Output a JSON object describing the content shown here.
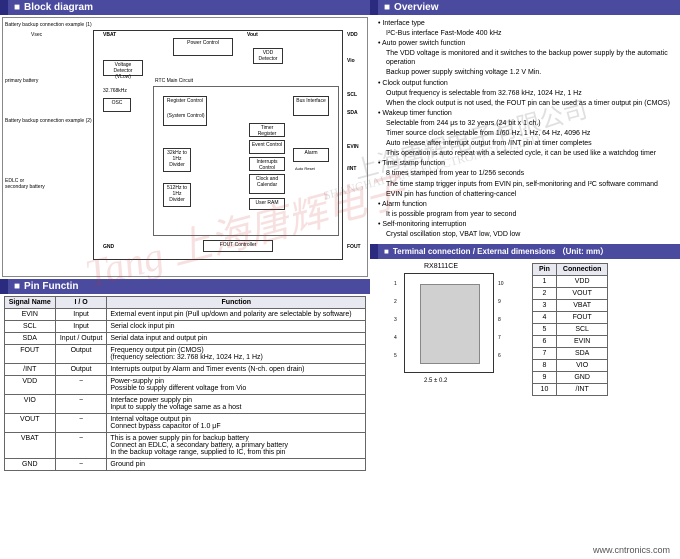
{
  "headers": {
    "block_diagram": "Block diagram",
    "overview": "Overview",
    "pin_function": "Pin Functin",
    "terminal": "Terminal connection / External dimensions （Unit: mm）"
  },
  "block_diagram": {
    "examples": [
      "Battery backup connection example (1)",
      "Battery backup connection example (2)"
    ],
    "ext_labels": [
      "Vsec",
      "primary battery",
      "EDLC or secondary battery"
    ],
    "boxes": {
      "power_control": "Power Control",
      "vdd_detector": "VDD Detector",
      "vlow_detector": "Voltage Detector (VLow)",
      "osc": "OSC",
      "freq1": "32.768kHz",
      "reg_control": "Register Control",
      "bus_if": "Bus Interface",
      "timer_reg": "Timer Register",
      "event_control": "Event Control",
      "int_control": "Interrupts Control",
      "clock_cal": "Clock and Calendar",
      "user_ram": "User RAM",
      "fout_ctrl": "FOUT Controller",
      "divider1": "32kHz to 1Hz Divider",
      "divider2": "512Hz to 1Hz Divider",
      "main_circuit": "RTC Main Circuit",
      "system_control": "(System Control)",
      "alarm": "Alarm",
      "auto_reset": "Auto Reset"
    },
    "pins": [
      "VBAT",
      "Vout",
      "VDD",
      "Vio",
      "SCL",
      "SDA",
      "EVIN",
      "/INT",
      "FOUT",
      "GND"
    ]
  },
  "overview": [
    {
      "t": "bullet",
      "text": "Interface type"
    },
    {
      "t": "sub",
      "text": "I²C-Bus interface Fast-Mode 400 kHz"
    },
    {
      "t": "bullet",
      "text": "Auto power switch function"
    },
    {
      "t": "sub",
      "text": "The VDD voltage is monitored and it switches to the backup power supply by the automatic operation"
    },
    {
      "t": "sub",
      "text": "Backup power supply switching voltage 1.2 V Min."
    },
    {
      "t": "bullet",
      "text": "Clock output function"
    },
    {
      "t": "sub",
      "text": "Output frequency is selectable from 32.768 kHz, 1024 Hz, 1 Hz"
    },
    {
      "t": "sub",
      "text": "When the clock output is not used, the FOUT pin can be used as a timer output pin (CMOS)"
    },
    {
      "t": "bullet",
      "text": "Wakeup timer function"
    },
    {
      "t": "sub",
      "text": "Selectable from 244 μs to 32 years (24 bit x 1 ch.)"
    },
    {
      "t": "sub",
      "text": "Timer source clock selectable from 1/60 Hz, 1 Hz, 64 Hz, 4096 Hz"
    },
    {
      "t": "sub",
      "text": "Auto release after interrupt output from /INT pin at timer completes"
    },
    {
      "t": "sub",
      "text": "This operation is auto repeat with a selected cycle, it can be used like a watchdog timer"
    },
    {
      "t": "bullet",
      "text": "Time stamp function"
    },
    {
      "t": "sub",
      "text": "8 times stamped from year to 1/256 seconds"
    },
    {
      "t": "sub",
      "text": "The time stamp trigger inputs from EVIN pin, self-monitoring and I²C software command"
    },
    {
      "t": "sub",
      "text": "EVIN pin has function of chattering-cancel"
    },
    {
      "t": "bullet",
      "text": "Alarm function"
    },
    {
      "t": "sub",
      "text": "It is possible program from year to second"
    },
    {
      "t": "bullet",
      "text": "Self-monitoring interruption"
    },
    {
      "t": "sub",
      "text": "Crystal oscillation stop, VBAT low, VDD low"
    }
  ],
  "pin_function": {
    "headers": [
      "Signal Name",
      "I / O",
      "Function"
    ],
    "rows": [
      [
        "EVIN",
        "Input",
        "External event input pin (Pull up/down and polarity are selectable by software)"
      ],
      [
        "SCL",
        "Input",
        "Serial clock input pin"
      ],
      [
        "SDA",
        "Input / Output",
        "Serial data input and output pin"
      ],
      [
        "FOUT",
        "Output",
        "Frequency output pin (CMOS)\n(frequency selection: 32.768 kHz, 1024 Hz, 1 Hz)"
      ],
      [
        "/INT",
        "Output",
        "Interrupts output by Alarm and Timer events (N-ch. open drain)"
      ],
      [
        "VDD",
        "−",
        "Power-supply pin\nPossible to supply different voltage from Vio"
      ],
      [
        "VIO",
        "−",
        "Interface power supply pin\nInput to supply the voltage same as a host"
      ],
      [
        "VOUT",
        "−",
        "Internal voltage output pin\nConnect bypass capacitor of 1.0 μF"
      ],
      [
        "VBAT",
        "−",
        "This is a power supply pin for backup battery\nConnect an EDLC, a secondary battery, a primary battery\nIn the backup voltage range, supplied to IC, from this pin"
      ],
      [
        "GND",
        "−",
        "Ground pin"
      ]
    ]
  },
  "terminal": {
    "chip_name": "RX8111CE",
    "pin_numbers_left": [
      "1",
      "2",
      "3",
      "4",
      "5"
    ],
    "pin_numbers_right": [
      "10",
      "9",
      "8",
      "7",
      "6"
    ],
    "dim1": "2.5 ± 0.2",
    "conn_headers": [
      "Pin",
      "Connection"
    ],
    "conn_rows": [
      [
        "1",
        "VDD"
      ],
      [
        "2",
        "VOUT"
      ],
      [
        "3",
        "VBAT"
      ],
      [
        "4",
        "FOUT"
      ],
      [
        "5",
        "SCL"
      ],
      [
        "6",
        "EVIN"
      ],
      [
        "7",
        "SDA"
      ],
      [
        "8",
        "VIO"
      ],
      [
        "9",
        "GND"
      ],
      [
        "10",
        "/INT"
      ]
    ]
  },
  "footer_url": "www.cntronics.com",
  "watermarks": {
    "w1": "Tang 上海唐辉电子",
    "w2": "上海唐辉电子有限公司",
    "w3": "SHANGHAI TANG ELECTRONIC CO.,LTD"
  }
}
